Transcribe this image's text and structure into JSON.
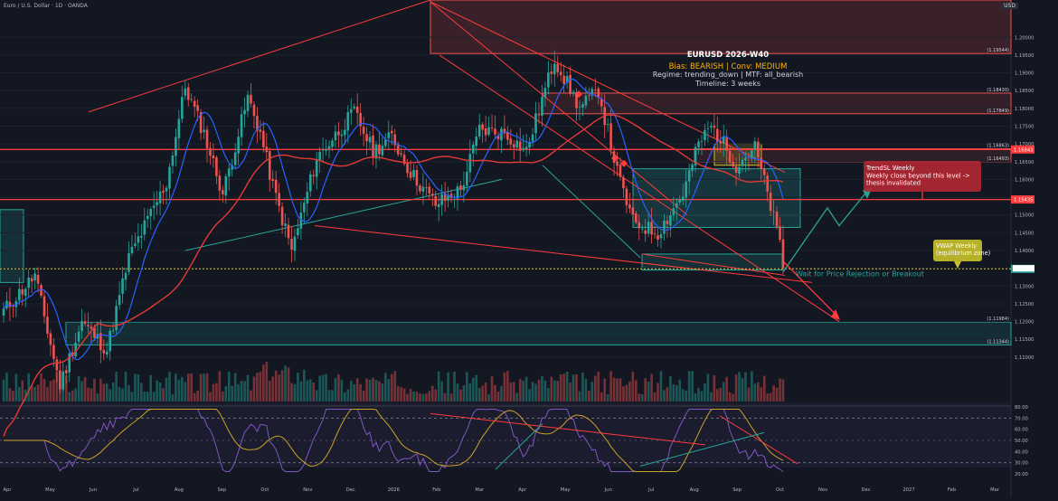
{
  "header": {
    "symbol_text": "Euro / U.S. Dollar · 1D · OANDA",
    "currency": "USD"
  },
  "info_box": {
    "title": "EURUSD 2026-W40",
    "bias": "Bias: BEARISH | Conv: MEDIUM",
    "regime": "Regime: trending_down | MTF: all_bearish",
    "timeline": "Timeline: 3 weeks"
  },
  "callouts": {
    "trend_sl": [
      "TrendSL Weekly",
      "Weekly close beyond this level ->",
      "thesis invalidated"
    ],
    "vwap": [
      "VWAP Weekly",
      "(equilibrium zone)"
    ],
    "wait": "Wait for Price Rejection or Breakout"
  },
  "colors": {
    "background": "#131722",
    "bull": "#26a69a",
    "bear": "#ef5350",
    "resistance": "#ff3b3b",
    "wma": "#2962ff",
    "rsi": "#7e57c2",
    "rsi_signal": "#c9a227",
    "vwap_box": "#c9c22a",
    "sl_box": "#b22833"
  },
  "chart_data": {
    "type": "candlestick",
    "price_panel": {
      "ylim": [
        1.0975,
        1.2105
      ],
      "y_ticks": [
        "1.20000",
        "1.19500",
        "1.19000",
        "1.18500",
        "1.18000",
        "1.17500",
        "1.17000",
        "1.16500",
        "1.16000",
        "1.15500",
        "1.15000",
        "1.14500",
        "1.14000",
        "1.13500",
        "1.13000",
        "1.12500",
        "1.12000",
        "1.11500",
        "1.11000"
      ],
      "level_labels": [
        {
          "value": 1.19544,
          "label": "(1.19544)"
        },
        {
          "value": 1.1843,
          "label": "(1.18430)"
        },
        {
          "value": 1.17849,
          "label": "(1.17849)"
        },
        {
          "value": 1.16863,
          "label": "(1.16863)"
        },
        {
          "value": 1.16493,
          "label": "(1.16493)"
        },
        {
          "value": 1.11984,
          "label": "(1.11984)"
        },
        {
          "value": 1.11344,
          "label": "(1.11344)"
        }
      ],
      "price_tags": [
        {
          "value": 1.16843,
          "label": "1.16843",
          "color": "#ff3b3b"
        },
        {
          "value": 1.15435,
          "label": "1.15435",
          "color": "#ff3b3b"
        },
        {
          "value": 1.13484,
          "label": "1.13484",
          "color": "#26a69a"
        }
      ],
      "horizontal_levels": [
        1.16843,
        1.15435
      ],
      "current_price": 1.13484
    },
    "x_axis": {
      "labels": [
        "Apr",
        "May",
        "Jun",
        "Jul",
        "Aug",
        "Sep",
        "Oct",
        "Nov",
        "Dec",
        "2026",
        "Feb",
        "Mar",
        "Apr",
        "May",
        "Jun",
        "Jul",
        "Aug",
        "Sep",
        "Oct",
        "Nov",
        "Dec",
        "2027",
        "Feb",
        "Mar"
      ]
    },
    "rsi_panel": {
      "ylim": [
        20,
        80
      ],
      "y_ticks": [
        "80.00",
        "70.00",
        "60.00",
        "50.00",
        "40.00",
        "30.00",
        "20.00"
      ],
      "overbought": 70,
      "oversold": 30
    }
  }
}
